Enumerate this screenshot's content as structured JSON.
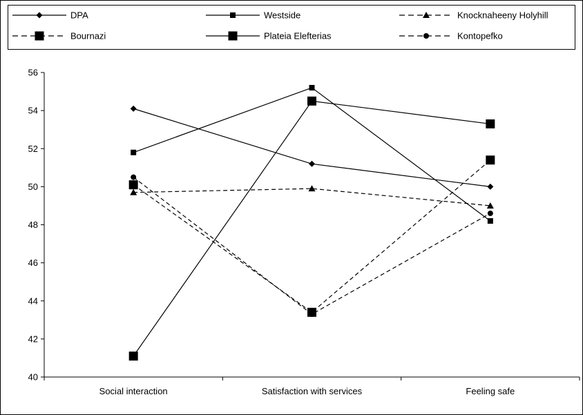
{
  "chart_data": {
    "type": "line",
    "categories": [
      "Social interaction",
      "Satisfaction with services",
      "Feeling safe"
    ],
    "ylim": [
      40,
      56
    ],
    "yticks": [
      40,
      42,
      44,
      46,
      48,
      50,
      52,
      54,
      56
    ],
    "grid": false,
    "legend_position": "top",
    "series": [
      {
        "name": "DPA",
        "values": [
          54.1,
          51.2,
          50.0
        ],
        "marker": "diamond",
        "dash": "solid",
        "marker_size": "small"
      },
      {
        "name": "Westside",
        "values": [
          51.8,
          55.2,
          48.2
        ],
        "marker": "square",
        "dash": "solid",
        "marker_size": "small"
      },
      {
        "name": "Knocknaheeny Holyhill",
        "values": [
          49.7,
          49.9,
          49.0
        ],
        "marker": "triangle",
        "dash": "dashed",
        "marker_size": "small"
      },
      {
        "name": "Bournazi",
        "values": [
          50.1,
          43.4,
          51.4
        ],
        "marker": "square",
        "dash": "dashed",
        "marker_size": "large"
      },
      {
        "name": "Plateia Elefterias",
        "values": [
          41.1,
          54.5,
          53.3
        ],
        "marker": "square",
        "dash": "solid",
        "marker_size": "large"
      },
      {
        "name": "Kontopefko",
        "values": [
          50.5,
          43.3,
          48.6
        ],
        "marker": "circle",
        "dash": "dashed",
        "marker_size": "small"
      }
    ],
    "colors": {
      "line": "#000000",
      "background": "#ffffff"
    }
  }
}
